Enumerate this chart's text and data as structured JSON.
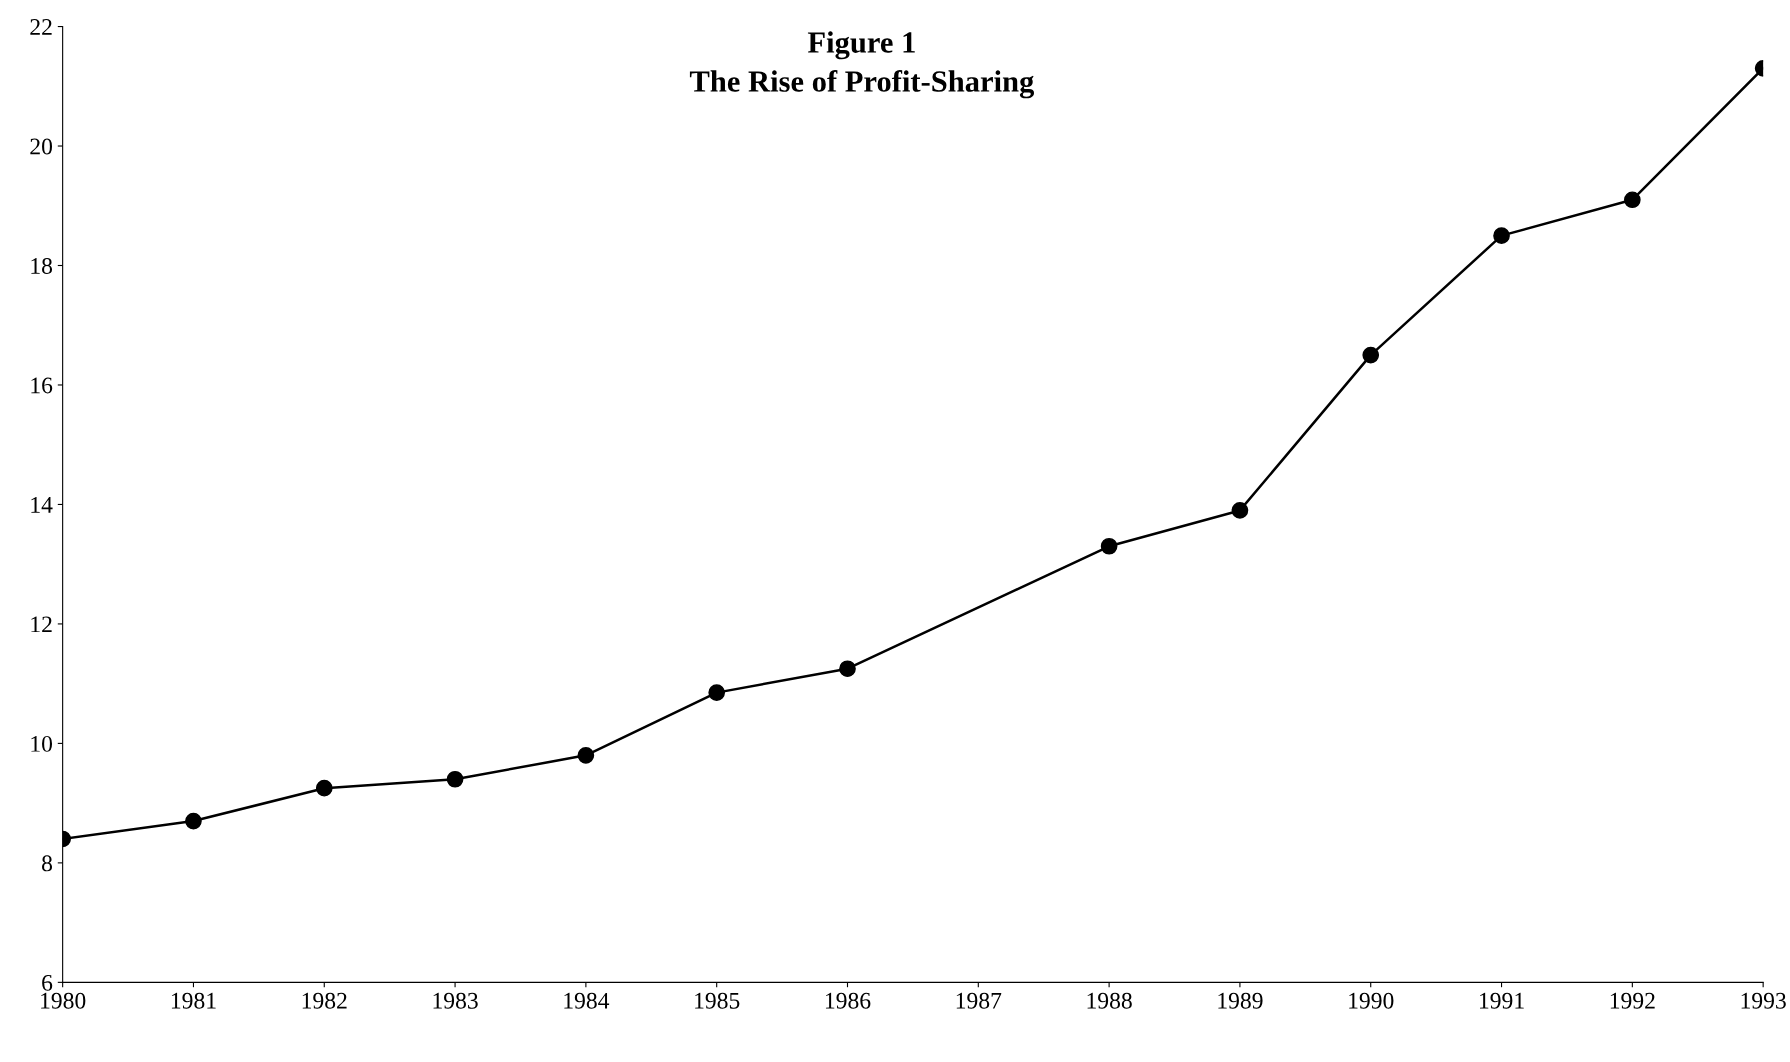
{
  "chart_data": {
    "type": "line",
    "title": "Figure 1\nThe Rise of Profit-Sharing",
    "x": [
      1980,
      1981,
      1982,
      1983,
      1984,
      1985,
      1986,
      1988,
      1989,
      1990,
      1991,
      1992,
      1993
    ],
    "series": [
      {
        "color": "#000000",
        "values": [
          8.4,
          8.7,
          9.25,
          9.4,
          9.8,
          10.85,
          11.25,
          13.3,
          13.9,
          16.5,
          18.5,
          19.1,
          21.3
        ]
      }
    ],
    "xlim": [
      1980,
      1993
    ],
    "xticks": [
      1980,
      1981,
      1982,
      1983,
      1984,
      1985,
      1986,
      1987,
      1988,
      1989,
      1990,
      1991,
      1992,
      1993
    ],
    "ylim": [
      6,
      22
    ],
    "yticks": [
      6,
      8,
      10,
      12,
      14,
      16,
      18,
      20,
      22
    ],
    "marker": "circle",
    "line_style": "solid",
    "grid": false,
    "legend": false
  }
}
